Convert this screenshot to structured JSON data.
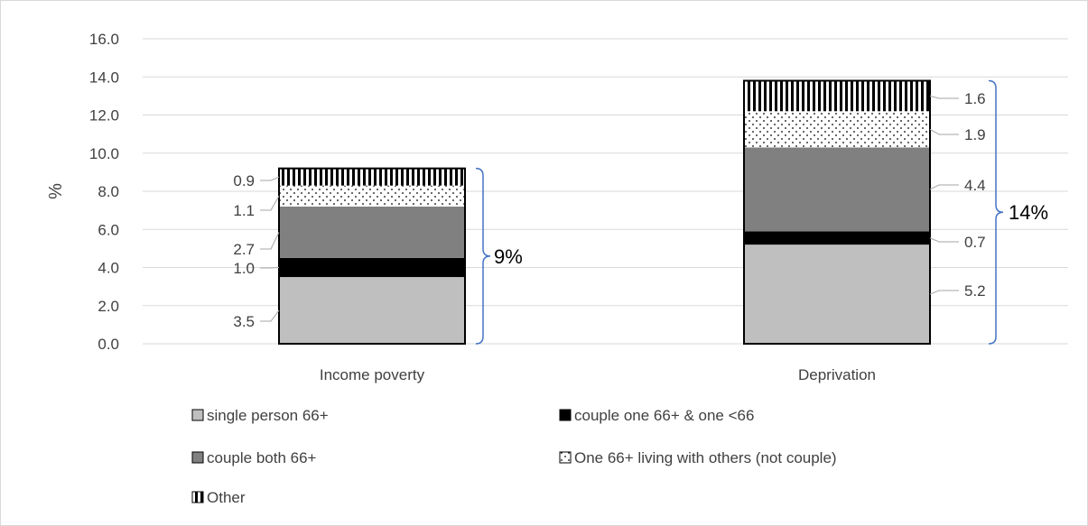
{
  "chart_data": {
    "type": "bar",
    "stacked": true,
    "title": "",
    "xlabel": "",
    "ylabel": "%",
    "ylim": [
      0,
      16
    ],
    "y_ticks": [
      "0.0",
      "2.0",
      "4.0",
      "6.0",
      "8.0",
      "10.0",
      "12.0",
      "14.0",
      "16.0"
    ],
    "grid": true,
    "legend_position": "bottom",
    "categories": [
      "Income poverty",
      "Deprivation"
    ],
    "series": [
      {
        "name": "single person 66+",
        "values": [
          3.5,
          5.2
        ],
        "fill": "#bfbfbf",
        "pattern": "solid"
      },
      {
        "name": "couple one 66+ & one <66",
        "values": [
          1.0,
          0.7
        ],
        "fill": "#000000",
        "pattern": "solid"
      },
      {
        "name": "couple both 66+",
        "values": [
          2.7,
          4.4
        ],
        "fill": "#808080",
        "pattern": "solid"
      },
      {
        "name": "One 66+ living with others (not couple)",
        "values": [
          1.1,
          1.9
        ],
        "fill": "#ffffff",
        "pattern": "dots"
      },
      {
        "name": "Other",
        "values": [
          0.9,
          1.6
        ],
        "fill": "#ffffff",
        "pattern": "vertical-stripes"
      }
    ],
    "data_labels": [
      [
        "3.5",
        "1.0",
        "2.7",
        "1.1",
        "0.9"
      ],
      [
        "5.2",
        "0.7",
        "4.4",
        "1.9",
        "1.6"
      ]
    ],
    "totals": [
      "9%",
      "14%"
    ],
    "colors": {
      "gridline": "#d9d9d9",
      "bracket": "#4472c4",
      "leader": "#a6a6a6",
      "bar_outline": "#000000"
    }
  }
}
